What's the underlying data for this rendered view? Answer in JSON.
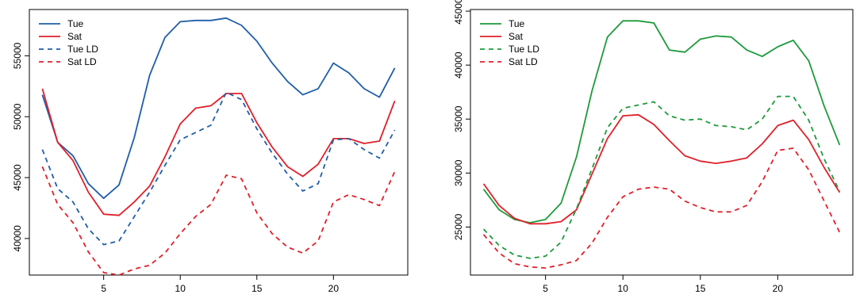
{
  "chart_data": [
    {
      "type": "line",
      "title": "",
      "xlabel": "",
      "ylabel": "",
      "xlim": [
        0.15,
        24.85
      ],
      "ylim": [
        37000,
        58800
      ],
      "x_ticks": [
        5,
        10,
        15,
        20
      ],
      "y_ticks": [
        40000,
        45000,
        50000,
        55000
      ],
      "grid": false,
      "legend_position": "top-left",
      "x": [
        1,
        2,
        3,
        4,
        5,
        6,
        7,
        8,
        9,
        10,
        11,
        12,
        13,
        14,
        15,
        16,
        17,
        18,
        19,
        20,
        21,
        22,
        23,
        24
      ],
      "series": [
        {
          "name": "Tue",
          "color": "#1f5ea8",
          "dash": "solid",
          "values": [
            51800,
            47900,
            46800,
            44500,
            43300,
            44400,
            48300,
            53400,
            56500,
            57800,
            57900,
            57900,
            58100,
            57500,
            56200,
            54400,
            52900,
            51800,
            52300,
            54400,
            53600,
            52300,
            51600,
            54000
          ]
        },
        {
          "name": "Sat",
          "color": "#e0202a",
          "dash": "solid",
          "values": [
            52300,
            47900,
            46400,
            43800,
            42000,
            41900,
            43000,
            44300,
            46700,
            49400,
            50700,
            50900,
            51900,
            51900,
            49500,
            47500,
            45900,
            45100,
            46100,
            48200,
            48200,
            47800,
            48000,
            51300
          ]
        },
        {
          "name": "Tue LD",
          "color": "#1f5ea8",
          "dash": "dashed",
          "values": [
            47300,
            44100,
            43000,
            40800,
            39500,
            39800,
            41800,
            43800,
            46000,
            48100,
            48700,
            49300,
            52000,
            51400,
            49000,
            47000,
            45300,
            43900,
            44500,
            48100,
            48200,
            47300,
            46600,
            48900
          ]
        },
        {
          "name": "Sat LD",
          "color": "#e0202a",
          "dash": "dashed",
          "values": [
            45900,
            42800,
            41300,
            38900,
            37200,
            37000,
            37500,
            37800,
            38800,
            40400,
            41800,
            42800,
            45200,
            44900,
            42100,
            40400,
            39300,
            38800,
            39800,
            43000,
            43600,
            43200,
            42700,
            45500
          ]
        }
      ]
    },
    {
      "type": "line",
      "title": "",
      "xlabel": "",
      "ylabel": "",
      "xlim": [
        0.15,
        24.85
      ],
      "ylim": [
        20550,
        45150
      ],
      "x_ticks": [
        5,
        10,
        15,
        20
      ],
      "y_ticks": [
        25000,
        30000,
        35000,
        40000,
        45000
      ],
      "grid": false,
      "legend_position": "top-left",
      "x": [
        1,
        2,
        3,
        4,
        5,
        6,
        7,
        8,
        9,
        10,
        11,
        12,
        13,
        14,
        15,
        16,
        17,
        18,
        19,
        20,
        21,
        22,
        23,
        24
      ],
      "series": [
        {
          "name": "Tue",
          "color": "#1e9a3c",
          "dash": "solid",
          "values": [
            28500,
            26600,
            25700,
            25400,
            25700,
            27200,
            31500,
            37600,
            42600,
            44100,
            44100,
            43900,
            41400,
            41200,
            42400,
            42700,
            42600,
            41400,
            40800,
            41700,
            42300,
            40400,
            36200,
            32600
          ]
        },
        {
          "name": "Sat",
          "color": "#e0202a",
          "dash": "solid",
          "values": [
            29000,
            27000,
            25800,
            25300,
            25300,
            25500,
            26600,
            29900,
            33200,
            35300,
            35400,
            34500,
            33000,
            31600,
            31100,
            30900,
            31100,
            31400,
            32700,
            34400,
            34900,
            33100,
            30500,
            28200
          ]
        },
        {
          "name": "Tue LD",
          "color": "#1e9a3c",
          "dash": "dashed",
          "values": [
            24800,
            23300,
            22400,
            22100,
            22300,
            23600,
            26700,
            30400,
            34200,
            36000,
            36300,
            36600,
            35300,
            34900,
            35000,
            34400,
            34300,
            34000,
            35000,
            37100,
            37100,
            34900,
            31300,
            28300
          ]
        },
        {
          "name": "Sat LD",
          "color": "#e0202a",
          "dash": "dashed",
          "values": [
            24300,
            22600,
            21600,
            21300,
            21200,
            21500,
            21900,
            23500,
            25900,
            27800,
            28500,
            28700,
            28500,
            27400,
            26800,
            26400,
            26400,
            27000,
            29200,
            32100,
            32300,
            30300,
            27400,
            24500
          ]
        }
      ]
    }
  ]
}
